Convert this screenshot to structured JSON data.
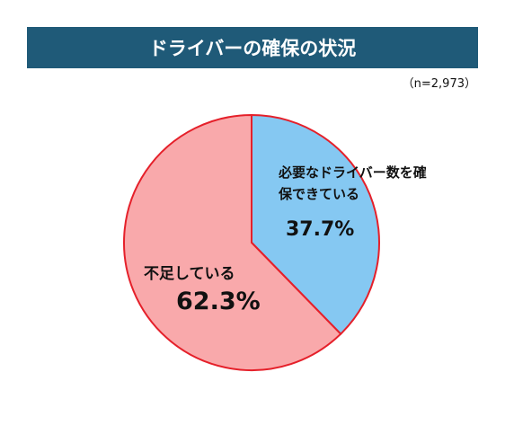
{
  "chart_data": {
    "type": "pie",
    "title": "ドライバーの確保の状況",
    "note": "（n=2,973）",
    "categories": [
      "必要なドライバー数を確保できている",
      "不足している"
    ],
    "values": [
      37.7,
      62.3
    ],
    "value_labels": [
      "37.7%",
      "62.3%"
    ],
    "colors": [
      "#85c8f2",
      "#f9a9ab"
    ],
    "edge_color": "#e5202a"
  }
}
